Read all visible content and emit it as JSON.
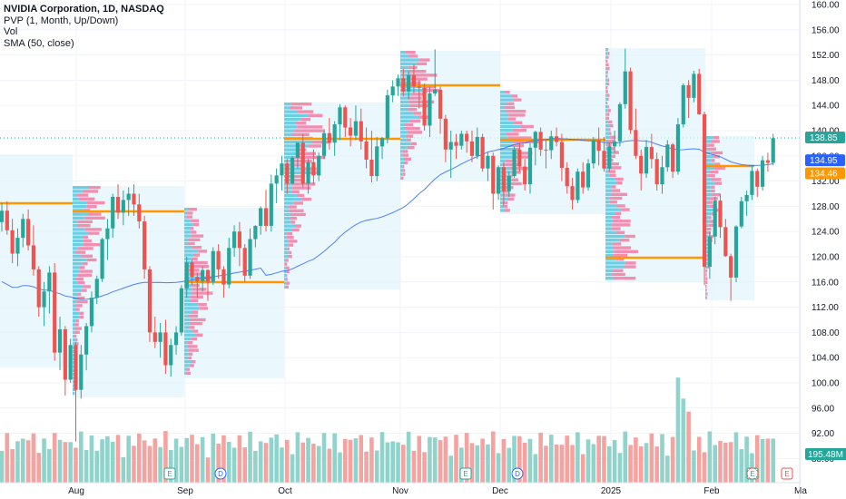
{
  "legend": {
    "title": "NVIDIA Corporation, 1D, NASDAQ",
    "indicator_pvp": "PVP (1, Month, Up/Down)",
    "indicator_vol": "Vol",
    "indicator_sma": "SMA (50, close)"
  },
  "price_labels": {
    "current_price": "138.85",
    "sma_value": "134.95",
    "poc_value": "134.46",
    "volume_value": "195.48M"
  },
  "event_markers": [
    {
      "label": "E",
      "type": "earnings"
    },
    {
      "label": "D",
      "type": "dividend"
    },
    {
      "label": "E",
      "type": "earnings"
    },
    {
      "label": "D",
      "type": "dividend"
    },
    {
      "label": "E",
      "type": "earnings"
    }
  ],
  "colors": {
    "up": "#26a69a",
    "down": "#ef5350",
    "poc_line": "#ff9800",
    "sma_line": "#2962ff",
    "profile_box": "#e3f4fb",
    "grid": "#f0f3fa"
  },
  "chart_data": {
    "type": "candlestick",
    "y_axis_ticks": [
      "160.00",
      "156.00",
      "152.00",
      "148.00",
      "144.00",
      "140.00",
      "136.00",
      "132.00",
      "128.00",
      "124.00",
      "120.00",
      "116.00",
      "112.00",
      "108.00",
      "104.00",
      "100.00",
      "96.00",
      "92.00",
      "88.00"
    ],
    "ylim": [
      86,
      161
    ],
    "x_axis_ticks": [
      "Aug",
      "Sep",
      "Oct",
      "Nov",
      "Dec",
      "2025",
      "Feb",
      "Ma"
    ],
    "series": [
      {
        "name": "SMA (50, close)",
        "role": "moving-average"
      }
    ],
    "candles_ohlc": [
      [
        125.5,
        128.5,
        124.0,
        127.3
      ],
      [
        127.3,
        128.8,
        123.5,
        124.2
      ],
      [
        124.2,
        126.0,
        119.0,
        120.5
      ],
      [
        120.5,
        124.5,
        118.5,
        123.0
      ],
      [
        123.0,
        126.8,
        121.5,
        126.0
      ],
      [
        126.0,
        127.5,
        121.0,
        121.8
      ],
      [
        121.8,
        125.0,
        117.0,
        118.0
      ],
      [
        118.0,
        118.5,
        110.5,
        112.0
      ],
      [
        112.0,
        116.0,
        109.0,
        114.5
      ],
      [
        114.5,
        118.5,
        111.0,
        117.5
      ],
      [
        117.5,
        119.0,
        103.5,
        104.8
      ],
      [
        104.8,
        110.5,
        102.0,
        108.5
      ],
      [
        108.5,
        109.0,
        98.0,
        100.5
      ],
      [
        100.5,
        107.0,
        100.0,
        106.0
      ],
      [
        106.0,
        106.5,
        90.7,
        98.9
      ],
      [
        98.9,
        106.0,
        97.5,
        104.5
      ],
      [
        104.5,
        109.5,
        102.0,
        109.0
      ],
      [
        109.0,
        114.5,
        108.0,
        113.5
      ],
      [
        113.5,
        117.0,
        112.5,
        116.5
      ],
      [
        116.5,
        123.0,
        116.0,
        122.8
      ],
      [
        122.8,
        126.0,
        119.5,
        124.5
      ],
      [
        124.5,
        130.0,
        123.0,
        129.5
      ],
      [
        129.5,
        131.5,
        126.0,
        127.0
      ],
      [
        127.0,
        130.5,
        125.0,
        129.0
      ],
      [
        129.0,
        131.0,
        126.5,
        130.0
      ],
      [
        130.0,
        131.5,
        126.5,
        128.3
      ],
      [
        128.3,
        130.0,
        124.5,
        125.6
      ],
      [
        125.6,
        126.5,
        116.5,
        118.0
      ],
      [
        118.0,
        118.5,
        106.5,
        108.0
      ],
      [
        108.0,
        110.5,
        105.5,
        106.5
      ],
      [
        106.5,
        109.5,
        104.0,
        108.0
      ],
      [
        108.0,
        110.0,
        101.4,
        102.8
      ],
      [
        102.8,
        107.0,
        101.0,
        106.0
      ],
      [
        106.0,
        109.0,
        104.5,
        108.0
      ],
      [
        108.0,
        115.5,
        107.5,
        115.0
      ],
      [
        115.0,
        120.0,
        113.5,
        119.1
      ],
      [
        119.1,
        119.5,
        115.5,
        116.8
      ],
      [
        116.8,
        117.5,
        113.5,
        116.1
      ],
      [
        116.1,
        118.5,
        114.5,
        117.9
      ],
      [
        117.9,
        118.0,
        113.0,
        116.0
      ],
      [
        116.0,
        121.5,
        115.5,
        120.9
      ],
      [
        120.9,
        122.0,
        116.5,
        118.0
      ],
      [
        118.0,
        118.5,
        113.5,
        115.6
      ],
      [
        115.6,
        123.0,
        115.0,
        121.4
      ],
      [
        121.4,
        125.0,
        120.0,
        124.0
      ],
      [
        124.0,
        125.5,
        118.5,
        121.4
      ],
      [
        121.4,
        122.0,
        116.0,
        117.0
      ],
      [
        117.0,
        124.5,
        116.5,
        122.8
      ],
      [
        122.8,
        125.0,
        121.5,
        124.9
      ],
      [
        124.9,
        128.0,
        123.5,
        127.7
      ],
      [
        127.7,
        130.6,
        124.0,
        124.9
      ],
      [
        124.9,
        133.0,
        124.0,
        131.6
      ],
      [
        131.6,
        134.0,
        128.5,
        132.9
      ],
      [
        132.9,
        136.0,
        130.5,
        134.8
      ],
      [
        134.8,
        135.5,
        130.0,
        131.6
      ],
      [
        131.6,
        136.0,
        131.5,
        135.7
      ],
      [
        135.7,
        138.0,
        134.0,
        138.1
      ],
      [
        138.1,
        139.5,
        131.0,
        131.6
      ],
      [
        131.6,
        135.5,
        130.0,
        135.0
      ],
      [
        135.0,
        137.0,
        131.5,
        132.9
      ],
      [
        132.9,
        136.5,
        132.0,
        136.0
      ],
      [
        136.0,
        140.0,
        135.5,
        139.6
      ],
      [
        139.6,
        142.0,
        137.0,
        138.1
      ],
      [
        138.1,
        141.5,
        136.0,
        141.0
      ],
      [
        141.0,
        144.2,
        138.5,
        143.7
      ],
      [
        143.7,
        144.0,
        139.0,
        140.5
      ],
      [
        140.5,
        142.0,
        137.5,
        139.2
      ],
      [
        139.2,
        144.0,
        138.5,
        141.5
      ],
      [
        141.5,
        143.5,
        137.0,
        138.3
      ],
      [
        138.3,
        140.5,
        134.0,
        135.4
      ],
      [
        135.4,
        140.0,
        131.8,
        132.8
      ],
      [
        132.8,
        139.0,
        132.0,
        137.5
      ],
      [
        137.5,
        139.0,
        135.5,
        138.8
      ],
      [
        138.8,
        146.5,
        138.0,
        145.6
      ],
      [
        145.6,
        148.0,
        144.5,
        147.0
      ],
      [
        147.0,
        148.9,
        145.5,
        148.3
      ],
      [
        148.3,
        149.8,
        145.5,
        146.2
      ],
      [
        146.2,
        149.5,
        145.0,
        148.8
      ],
      [
        148.8,
        150.5,
        146.0,
        147.0
      ],
      [
        147.0,
        148.0,
        143.5,
        146.8
      ],
      [
        146.8,
        147.5,
        140.0,
        140.8
      ],
      [
        140.8,
        147.0,
        139.0,
        145.9
      ],
      [
        145.9,
        152.9,
        145.5,
        146.5
      ],
      [
        146.5,
        147.0,
        139.5,
        141.9
      ],
      [
        141.9,
        142.5,
        135.0,
        137.0
      ],
      [
        137.0,
        140.0,
        132.5,
        138.2
      ],
      [
        138.2,
        139.5,
        135.5,
        137.6
      ],
      [
        137.6,
        140.0,
        137.0,
        139.5
      ],
      [
        139.5,
        140.0,
        136.5,
        138.3
      ],
      [
        138.3,
        140.0,
        135.0,
        136.0
      ],
      [
        136.0,
        140.5,
        135.5,
        139.0
      ],
      [
        139.0,
        139.5,
        133.5,
        134.0
      ],
      [
        134.0,
        136.5,
        132.0,
        136.0
      ],
      [
        136.0,
        136.5,
        127.5,
        130.0
      ],
      [
        130.0,
        134.5,
        129.0,
        134.2
      ],
      [
        134.2,
        135.0,
        128.0,
        130.4
      ],
      [
        130.4,
        133.5,
        129.5,
        132.8
      ],
      [
        132.8,
        137.5,
        132.5,
        137.0
      ],
      [
        137.0,
        138.0,
        133.5,
        134.3
      ],
      [
        134.3,
        135.5,
        130.5,
        131.5
      ],
      [
        131.5,
        138.0,
        130.0,
        137.3
      ],
      [
        137.3,
        140.0,
        134.5,
        139.8
      ],
      [
        139.8,
        140.5,
        136.0,
        137.0
      ],
      [
        137.0,
        138.5,
        134.0,
        136.9
      ],
      [
        136.9,
        140.0,
        135.5,
        139.1
      ],
      [
        139.1,
        140.5,
        137.5,
        138.2
      ],
      [
        138.2,
        139.5,
        132.0,
        134.1
      ],
      [
        134.1,
        135.0,
        130.0,
        131.2
      ],
      [
        131.2,
        132.5,
        127.5,
        129.0
      ],
      [
        129.0,
        134.0,
        128.5,
        133.5
      ],
      [
        133.5,
        135.0,
        130.0,
        131.0
      ],
      [
        131.0,
        135.5,
        130.5,
        134.8
      ],
      [
        134.8,
        139.0,
        134.0,
        138.5
      ],
      [
        138.5,
        140.5,
        134.5,
        136.8
      ],
      [
        136.8,
        139.0,
        133.5,
        134.0
      ],
      [
        134.0,
        138.0,
        133.5,
        137.5
      ],
      [
        137.5,
        140.0,
        136.5,
        138.3
      ],
      [
        138.3,
        144.5,
        137.5,
        144.2
      ],
      [
        144.2,
        153.0,
        143.5,
        149.4
      ],
      [
        149.4,
        150.0,
        139.5,
        140.1
      ],
      [
        140.1,
        143.5,
        135.5,
        136.0
      ],
      [
        136.0,
        137.0,
        130.5,
        133.2
      ],
      [
        133.2,
        138.5,
        132.5,
        137.4
      ],
      [
        137.4,
        139.5,
        134.0,
        135.5
      ],
      [
        135.5,
        136.5,
        130.5,
        131.5
      ],
      [
        131.5,
        136.0,
        130.0,
        134.2
      ],
      [
        134.2,
        138.5,
        133.5,
        137.8
      ],
      [
        137.8,
        138.0,
        132.5,
        133.5
      ],
      [
        133.5,
        142.0,
        133.0,
        141.0
      ],
      [
        141.0,
        147.5,
        140.5,
        147.2
      ],
      [
        147.2,
        148.0,
        142.0,
        145.2
      ],
      [
        145.2,
        149.5,
        144.5,
        149.0
      ],
      [
        149.0,
        149.8,
        142.5,
        142.6
      ],
      [
        142.6,
        143.0,
        115.5,
        118.4
      ],
      [
        118.4,
        124.0,
        116.5,
        123.2
      ],
      [
        123.2,
        129.5,
        122.0,
        128.9
      ],
      [
        128.9,
        130.0,
        123.0,
        124.7
      ],
      [
        124.7,
        126.0,
        120.0,
        120.1
      ],
      [
        120.1,
        120.5,
        113.0,
        116.7
      ],
      [
        116.7,
        125.0,
        116.0,
        124.8
      ],
      [
        124.8,
        129.5,
        124.5,
        128.8
      ],
      [
        128.8,
        130.5,
        126.5,
        129.8
      ],
      [
        129.8,
        134.5,
        129.0,
        133.6
      ],
      [
        133.6,
        134.0,
        129.5,
        131.1
      ],
      [
        131.1,
        136.0,
        130.5,
        135.3
      ],
      [
        135.3,
        136.5,
        133.5,
        134.9
      ],
      [
        134.9,
        139.5,
        134.5,
        138.8
      ]
    ],
    "volume": {
      "unit": "M",
      "latest": 195.48
    }
  }
}
